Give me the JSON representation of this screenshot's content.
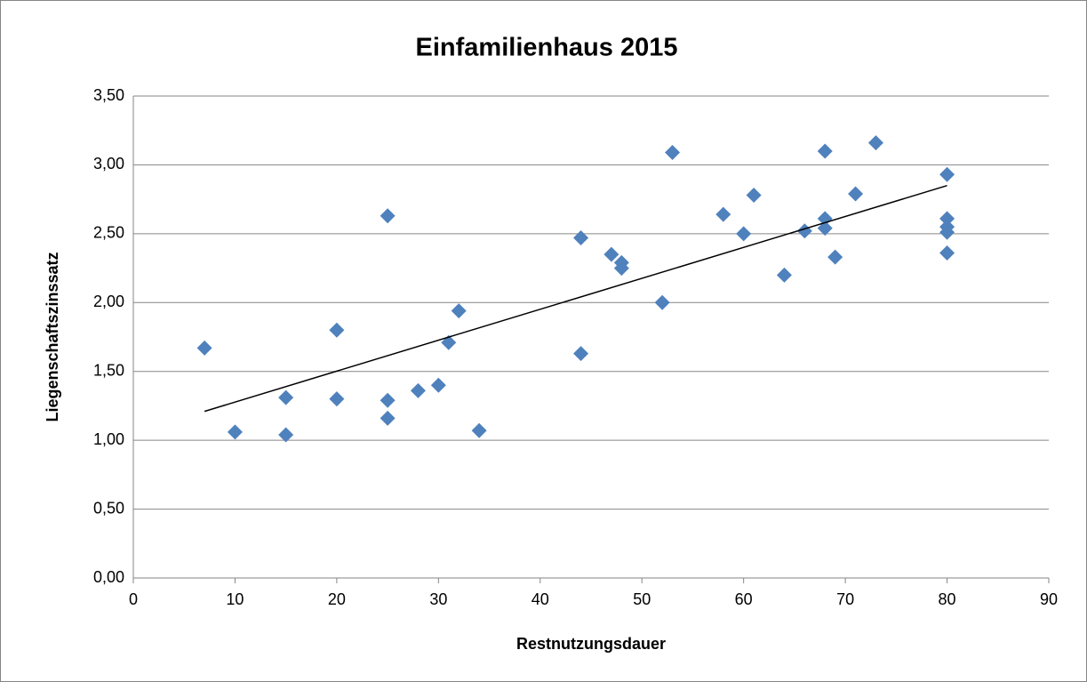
{
  "chart_data": {
    "type": "scatter",
    "title": "Einfamilienhaus 2015",
    "xlabel": "Restnutzungsdauer",
    "ylabel": "Liegenschaftszinssatz",
    "series": [
      {
        "color": "#4f81bd",
        "x": [
          7,
          10,
          15,
          15,
          20,
          20,
          25,
          25,
          25,
          28,
          30,
          31,
          32,
          34,
          44,
          44,
          47,
          48,
          48,
          52,
          53,
          58,
          60,
          61,
          64,
          66,
          68,
          68,
          68,
          69,
          71,
          73,
          80,
          80,
          80,
          80,
          80
        ],
        "values": [
          1.67,
          1.06,
          1.31,
          1.04,
          1.8,
          1.3,
          2.63,
          1.29,
          1.16,
          1.36,
          1.4,
          1.71,
          1.94,
          1.07,
          2.47,
          1.63,
          2.35,
          2.29,
          2.25,
          2.0,
          3.09,
          2.64,
          2.5,
          2.78,
          2.2,
          2.52,
          3.1,
          2.61,
          2.54,
          2.33,
          2.79,
          3.16,
          2.93,
          2.61,
          2.55,
          2.51,
          2.36
        ]
      }
    ],
    "trendline": {
      "color": "#000000",
      "x": [
        7,
        80
      ],
      "values": [
        1.21,
        2.85
      ]
    },
    "xlim": [
      0,
      90
    ],
    "xticks": [
      0,
      10,
      20,
      30,
      40,
      50,
      60,
      70,
      80,
      90
    ],
    "ylim": [
      0,
      3.5
    ],
    "yticks": [
      {
        "value": 0,
        "label": "0,00"
      },
      {
        "value": 0.5,
        "label": "0,50"
      },
      {
        "value": 1,
        "label": "1,00"
      },
      {
        "value": 1.5,
        "label": "1,50"
      },
      {
        "value": 2,
        "label": "2,00"
      },
      {
        "value": 2.5,
        "label": "2,50"
      },
      {
        "value": 3,
        "label": "3,00"
      },
      {
        "value": 3.5,
        "label": "3,50"
      }
    ],
    "grid": true
  }
}
